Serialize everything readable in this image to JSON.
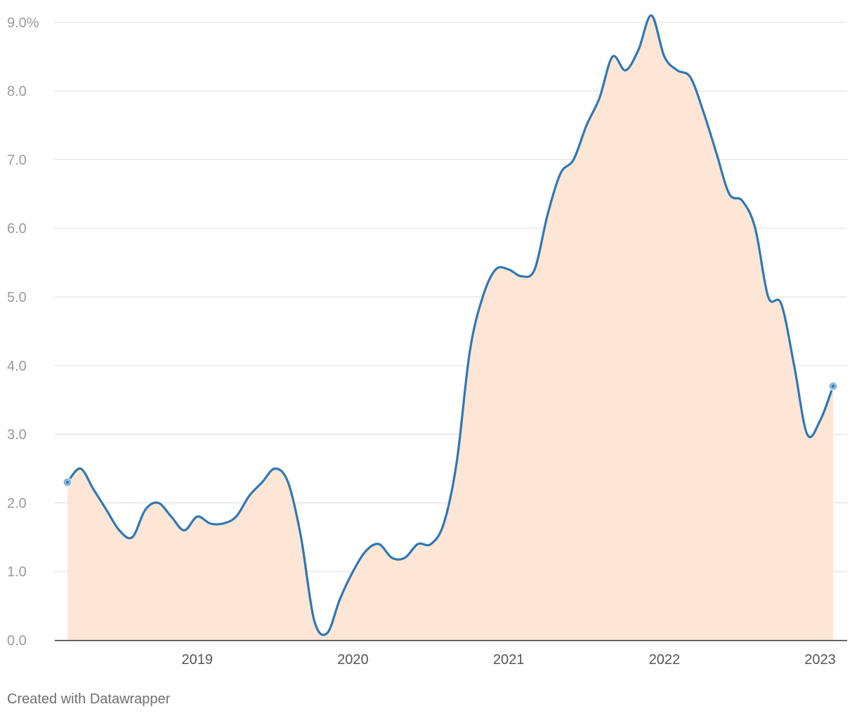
{
  "chart_data": {
    "type": "area",
    "title": "",
    "xlabel": "",
    "ylabel": "",
    "y_unit_suffix": "%",
    "ylim": [
      0,
      9
    ],
    "xlim": [
      "2018-09",
      "2023-08"
    ],
    "y_ticks": [
      0,
      1,
      2,
      3,
      4,
      5,
      6,
      7,
      8,
      9
    ],
    "y_tick_labels": [
      "0.0",
      "1.0",
      "2.0",
      "3.0",
      "4.0",
      "5.0",
      "6.0",
      "7.0",
      "8.0",
      "9.0%"
    ],
    "x_tick_labels": [
      "2019",
      "2020",
      "2021",
      "2022",
      "2023"
    ],
    "grid": true,
    "line_color": "#2f78b4",
    "fill_color": "#fde6d6",
    "series": [
      {
        "x": [
          "2018-09",
          "2018-10",
          "2018-11",
          "2018-12",
          "2019-01",
          "2019-02",
          "2019-03",
          "2019-04",
          "2019-05",
          "2019-06",
          "2019-07",
          "2019-08",
          "2019-09",
          "2019-10",
          "2019-11",
          "2019-12",
          "2020-01",
          "2020-02",
          "2020-03",
          "2020-04",
          "2020-05",
          "2020-06",
          "2020-07",
          "2020-08",
          "2020-09",
          "2020-10",
          "2020-11",
          "2020-12",
          "2021-01",
          "2021-02",
          "2021-03",
          "2021-04",
          "2021-05",
          "2021-06",
          "2021-07",
          "2021-08",
          "2021-09",
          "2021-10",
          "2021-11",
          "2021-12",
          "2022-01",
          "2022-02",
          "2022-03",
          "2022-04",
          "2022-05",
          "2022-06",
          "2022-07",
          "2022-08",
          "2022-09",
          "2022-10",
          "2022-11",
          "2022-12",
          "2023-01",
          "2023-02",
          "2023-03",
          "2023-04",
          "2023-05",
          "2023-06",
          "2023-07",
          "2023-08"
        ],
        "values": [
          2.3,
          2.5,
          2.2,
          1.9,
          1.6,
          1.5,
          1.9,
          2.0,
          1.8,
          1.6,
          1.8,
          1.7,
          1.7,
          1.8,
          2.1,
          2.3,
          2.5,
          2.3,
          1.5,
          0.3,
          0.1,
          0.6,
          1.0,
          1.3,
          1.4,
          1.2,
          1.2,
          1.4,
          1.4,
          1.7,
          2.6,
          4.2,
          5.0,
          5.4,
          5.4,
          5.3,
          5.4,
          6.2,
          6.8,
          7.0,
          7.5,
          7.9,
          8.5,
          8.3,
          8.6,
          9.1,
          8.5,
          8.3,
          8.2,
          7.7,
          7.1,
          6.5,
          6.4,
          6.0,
          5.0,
          4.9,
          4.0,
          3.0,
          3.2,
          3.7
        ]
      }
    ]
  },
  "footer": {
    "credit": "Created with Datawrapper"
  }
}
